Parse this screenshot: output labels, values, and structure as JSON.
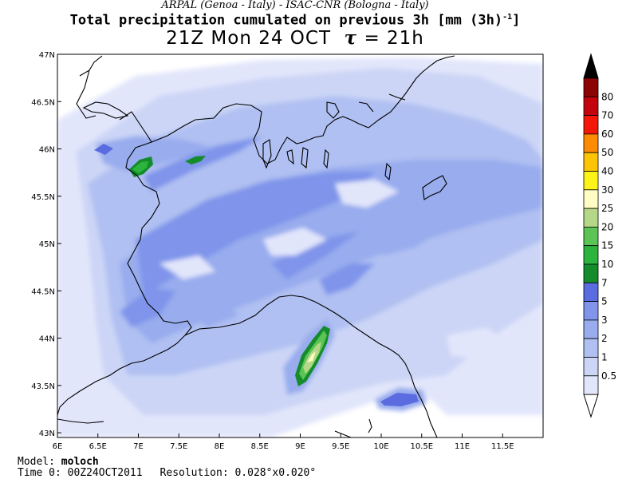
{
  "header": {
    "institutions": "ARPAL (Genoa - Italy)  -  ISAC-CNR (Bologna - Italy)",
    "title": "Total precipitation cumulated on previous 3h [mm (3h)",
    "title_sup": "-1",
    "title_end": "]",
    "valid_time": "21Z Mon 24 OCT",
    "tau_symbol": "τ",
    "tau_value": "= 21h"
  },
  "footer": {
    "model_label": "Model:",
    "model_value": "moloch",
    "time_label": "Time 0:",
    "time_value": "00Z24OCT2011",
    "res_label": "Resolution:",
    "res_value": "0.028°x0.020°"
  },
  "map": {
    "lon_range": [
      6,
      12
    ],
    "lat_range": [
      42.95,
      47
    ],
    "lon_ticks": [
      "6E",
      "6.5E",
      "7E",
      "7.5E",
      "8E",
      "8.5E",
      "9E",
      "9.5E",
      "10E",
      "10.5E",
      "11E",
      "11.5E"
    ],
    "lon_values": [
      6,
      6.5,
      7,
      7.5,
      8,
      8.5,
      9,
      9.5,
      10,
      10.5,
      11,
      11.5
    ],
    "lat_ticks": [
      "43N",
      "43.5N",
      "44N",
      "44.5N",
      "45N",
      "45.5N",
      "46N",
      "46.5N",
      "47N"
    ],
    "lat_values": [
      43,
      43.5,
      44,
      44.5,
      45,
      45.5,
      46,
      46.5,
      47
    ]
  },
  "colorbar": {
    "labels": [
      "0.5",
      "1",
      "2",
      "3",
      "5",
      "7",
      "10",
      "15",
      "20",
      "25",
      "30",
      "40",
      "50",
      "60",
      "70",
      "80"
    ],
    "colors": [
      "#e2e6fb",
      "#ccd5f6",
      "#b0c0f2",
      "#98acee",
      "#7f94ea",
      "#5a6ce0",
      "#148c2c",
      "#2cb43c",
      "#5cc454",
      "#b4d888",
      "#fffcc4",
      "#fcf418",
      "#fcc404",
      "#fc8c04",
      "#f41808",
      "#c4040c",
      "#8c0404",
      "#000000"
    ]
  }
}
